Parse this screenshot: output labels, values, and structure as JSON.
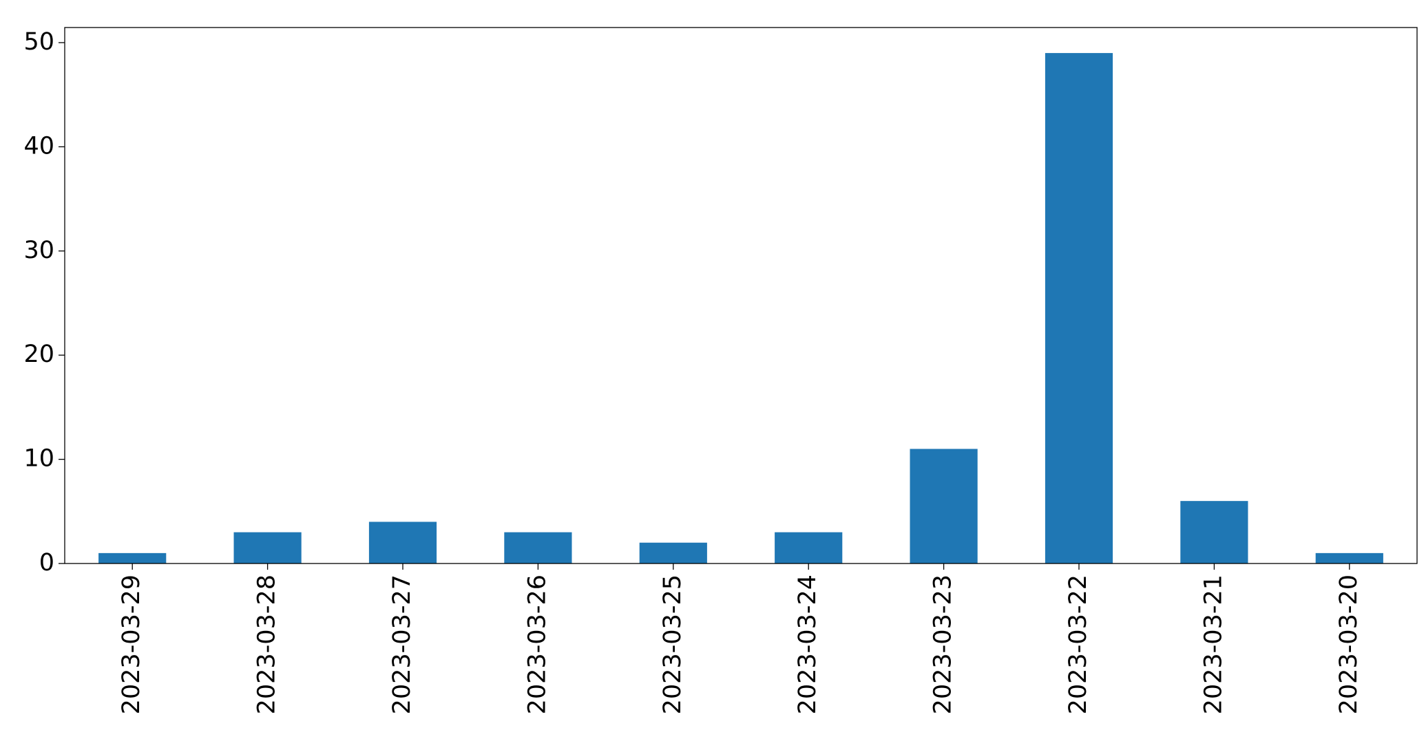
{
  "chart_data": {
    "type": "bar",
    "categories": [
      "2023-03-29",
      "2023-03-28",
      "2023-03-27",
      "2023-03-26",
      "2023-03-25",
      "2023-03-24",
      "2023-03-23",
      "2023-03-22",
      "2023-03-21",
      "2023-03-20"
    ],
    "values": [
      1,
      3,
      4,
      3,
      2,
      3,
      11,
      49,
      6,
      1
    ],
    "color": "#1f77b4",
    "ylim": [
      0,
      51.45
    ],
    "yticks": [
      0,
      10,
      20,
      30,
      40,
      50
    ],
    "grid": false
  }
}
